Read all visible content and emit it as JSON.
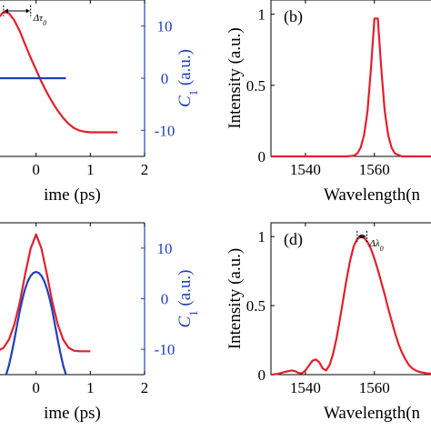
{
  "colors": {
    "red": "#e0202e",
    "blue": "#1f3fbf",
    "axis": "#000000"
  },
  "chart_data": [
    {
      "id": "a",
      "type": "line",
      "panel_label": "",
      "xlabel": "ime (ps)",
      "ylabel_right": "C",
      "ylabel_right_sub": "1",
      "ylabel_right_suffix": " (a.u.)",
      "xlim": [
        -1,
        2
      ],
      "xticks": [
        {
          "v": 0,
          "t": "0"
        },
        {
          "v": 1,
          "t": "1"
        },
        {
          "v": 2,
          "t": "2"
        }
      ],
      "y_right_lim": [
        -15,
        15
      ],
      "y_right_ticks": [
        {
          "v": 10,
          "t": "10"
        },
        {
          "v": 0,
          "t": "0"
        },
        {
          "v": -10,
          "t": "-10"
        }
      ],
      "annotation": {
        "text": "Δτ",
        "sub": "0",
        "from": -0.6,
        "to": -0.1
      },
      "series": [
        {
          "color": "red",
          "axis": "left",
          "x": [
            -1.0,
            -0.9,
            -0.8,
            -0.7,
            -0.6,
            -0.5,
            -0.4,
            -0.3,
            -0.2,
            -0.1,
            0.0,
            0.1,
            0.2,
            0.3,
            0.4,
            0.5,
            0.6,
            0.7,
            0.8,
            0.9,
            1.0,
            1.1,
            1.2,
            1.3,
            1.4,
            1.5
          ],
          "y": [
            0.3,
            0.55,
            0.8,
            0.95,
            1.0,
            0.99,
            0.93,
            0.84,
            0.73,
            0.62,
            0.52,
            0.42,
            0.33,
            0.25,
            0.18,
            0.12,
            0.07,
            0.035,
            0.015,
            0.005,
            0.0,
            0.0,
            0.0,
            0.0,
            0.0,
            0.0
          ]
        },
        {
          "color": "blue",
          "axis": "right",
          "x": [
            -1.0,
            0.55
          ],
          "y": [
            0,
            0
          ]
        }
      ]
    },
    {
      "id": "b",
      "type": "line",
      "panel_label": "(b)",
      "xlabel": "Wavelength(n",
      "ylabel": "Intensity (a.u.)",
      "xlim": [
        1530,
        1578
      ],
      "ylim": [
        0,
        1.1
      ],
      "xticks": [
        {
          "v": 1540,
          "t": "1540"
        },
        {
          "v": 1560,
          "t": "1560"
        }
      ],
      "yticks": [
        {
          "v": 0,
          "t": "0"
        },
        {
          "v": 0.5,
          "t": "0.5"
        },
        {
          "v": 1,
          "t": "1"
        }
      ],
      "series": [
        {
          "color": "red",
          "axis": "left",
          "x": [
            1530,
            1552,
            1554,
            1555,
            1556,
            1557,
            1558,
            1559,
            1560,
            1561,
            1562,
            1563,
            1564,
            1565,
            1566,
            1568,
            1578
          ],
          "y": [
            0,
            0,
            0.005,
            0.02,
            0.06,
            0.15,
            0.32,
            0.62,
            0.97,
            0.97,
            0.62,
            0.32,
            0.15,
            0.06,
            0.02,
            0.0,
            0
          ]
        }
      ]
    },
    {
      "id": "c",
      "type": "line",
      "panel_label": "",
      "xlabel": "ime (ps)",
      "ylabel_right": "C",
      "ylabel_right_sub": "1",
      "ylabel_right_suffix": " (a.u.)",
      "xlim": [
        -1,
        2
      ],
      "xticks": [
        {
          "v": 0,
          "t": "0"
        },
        {
          "v": 1,
          "t": "1"
        },
        {
          "v": 2,
          "t": "2"
        }
      ],
      "y_right_lim": [
        -15,
        15
      ],
      "y_right_ticks": [
        {
          "v": 10,
          "t": "10"
        },
        {
          "v": 0,
          "t": "0"
        },
        {
          "v": -10,
          "t": "-10"
        }
      ],
      "series": [
        {
          "color": "red",
          "axis": "left",
          "x": [
            -1.0,
            -0.9,
            -0.8,
            -0.7,
            -0.6,
            -0.5,
            -0.4,
            -0.3,
            -0.2,
            -0.1,
            0.0,
            0.1,
            0.2,
            0.3,
            0.4,
            0.5,
            0.6,
            0.7,
            0.8,
            0.9,
            1.0
          ],
          "y": [
            0.0,
            0.0,
            0.0,
            0.005,
            0.03,
            0.1,
            0.23,
            0.42,
            0.66,
            0.88,
            1.0,
            0.88,
            0.66,
            0.42,
            0.23,
            0.1,
            0.03,
            0.005,
            0.0,
            0.0,
            0.0
          ]
        },
        {
          "color": "blue",
          "axis": "right",
          "x": [
            -0.55,
            -0.5,
            -0.45,
            -0.4,
            -0.35,
            -0.3,
            -0.25,
            -0.2,
            -0.15,
            -0.1,
            -0.05,
            0.0,
            0.05,
            0.1,
            0.15,
            0.2,
            0.25,
            0.3,
            0.35,
            0.4,
            0.45,
            0.5,
            0.55
          ],
          "y": [
            -15,
            -13.2,
            -10.8,
            -8.1,
            -5.2,
            -2.4,
            0.0,
            2.0,
            3.5,
            4.5,
            5.1,
            5.3,
            5.1,
            4.5,
            3.5,
            2.0,
            0.0,
            -2.4,
            -5.2,
            -8.1,
            -10.8,
            -13.2,
            -15
          ]
        }
      ]
    },
    {
      "id": "d",
      "type": "line",
      "panel_label": "(d)",
      "xlabel": "Wavelength(n",
      "ylabel": "Intensity (a.u.)",
      "xlim": [
        1530,
        1578
      ],
      "ylim": [
        0,
        1.1
      ],
      "xticks": [
        {
          "v": 1540,
          "t": "1540"
        },
        {
          "v": 1560,
          "t": "1560"
        }
      ],
      "yticks": [
        {
          "v": 0,
          "t": "0"
        },
        {
          "v": 0.5,
          "t": "0.5"
        },
        {
          "v": 1,
          "t": "1"
        }
      ],
      "annotation": {
        "text": "Δλ",
        "sub": "0",
        "from": 1555,
        "to": 1557.8
      },
      "series": [
        {
          "color": "red",
          "axis": "left",
          "x": [
            1530,
            1532,
            1534,
            1536,
            1537,
            1538,
            1539,
            1540,
            1541,
            1542,
            1543,
            1544,
            1545,
            1546,
            1547,
            1548,
            1549,
            1550,
            1551,
            1552,
            1553,
            1554,
            1555,
            1556,
            1557,
            1558,
            1559,
            1560,
            1561,
            1562,
            1563,
            1564,
            1565,
            1566,
            1567,
            1568,
            1569,
            1570,
            1571,
            1572,
            1573,
            1574,
            1575,
            1576,
            1577,
            1578
          ],
          "y": [
            0,
            0.005,
            0.02,
            0.03,
            0.025,
            0.012,
            0.01,
            0.03,
            0.065,
            0.1,
            0.11,
            0.09,
            0.045,
            0.03,
            0.07,
            0.15,
            0.26,
            0.4,
            0.55,
            0.7,
            0.83,
            0.93,
            0.98,
            1.0,
            0.99,
            0.96,
            0.91,
            0.84,
            0.76,
            0.67,
            0.58,
            0.48,
            0.39,
            0.3,
            0.22,
            0.16,
            0.11,
            0.07,
            0.045,
            0.03,
            0.02,
            0.015,
            0.01,
            0.008,
            0.005,
            0.003
          ]
        }
      ]
    }
  ]
}
